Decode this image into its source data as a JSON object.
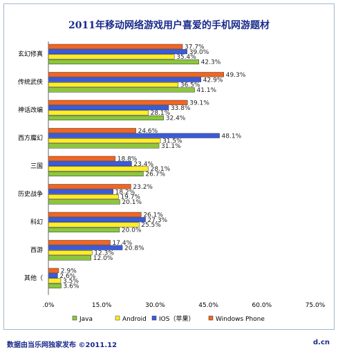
{
  "chart_data": {
    "type": "bar",
    "orientation": "horizontal",
    "title": "2011年移动网络游戏用户喜爱的手机网游题材",
    "categories": [
      "玄幻修真",
      "传统武侠",
      "神话改编",
      "西方魔幻",
      "三国",
      "历史战争",
      "科幻",
      "西游",
      "其他（"
    ],
    "series": [
      {
        "name": "Windows Phone",
        "color": "#f26522",
        "values": [
          37.7,
          49.3,
          39.1,
          24.6,
          18.8,
          23.2,
          26.1,
          17.4,
          2.9
        ]
      },
      {
        "name": "IOS（苹果）",
        "color": "#3b5bdb",
        "values": [
          39.0,
          42.9,
          33.8,
          48.1,
          23.4,
          18.2,
          27.3,
          20.8,
          2.6
        ]
      },
      {
        "name": "Android",
        "color": "#ffee22",
        "values": [
          35.4,
          36.5,
          28.1,
          31.5,
          28.1,
          19.7,
          25.5,
          12.3,
          3.5
        ]
      },
      {
        "name": "Java",
        "color": "#8dc63f",
        "values": [
          42.3,
          41.1,
          32.4,
          31.1,
          26.7,
          20.1,
          20.0,
          12.0,
          3.6
        ]
      }
    ],
    "legend_order": [
      "Java",
      "Android",
      "IOS（苹果）",
      "Windows Phone"
    ],
    "xlim": [
      0,
      75
    ],
    "xticks": [
      ".0%",
      "15.0%",
      "30.0%",
      "45.0%",
      "60.0%",
      "75.0%"
    ],
    "xtick_values": [
      0,
      15,
      30,
      45,
      60,
      75
    ],
    "grid": false,
    "legend_position": "bottom"
  },
  "footer": {
    "source": "数据由当乐网独家发布  ©2011.12",
    "site": "d.cn"
  }
}
